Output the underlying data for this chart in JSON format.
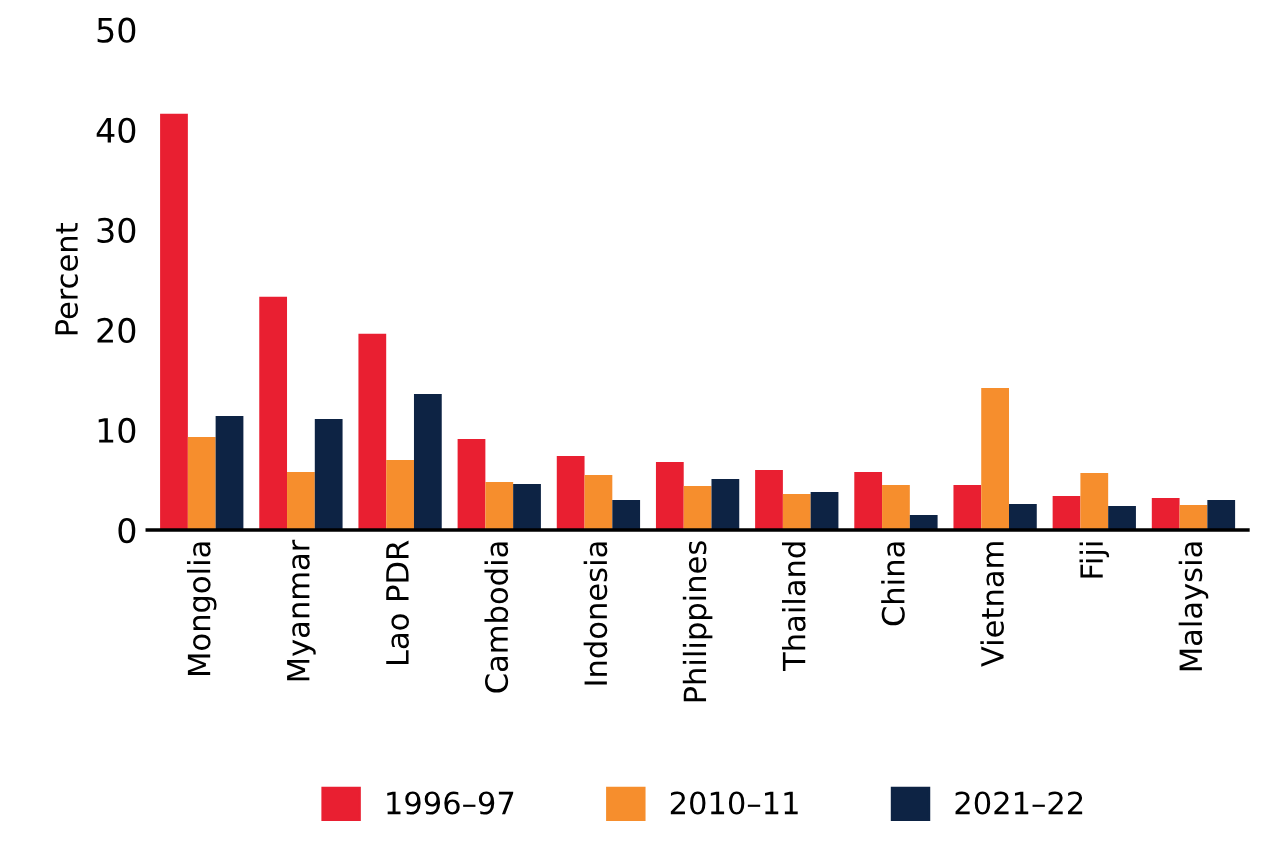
{
  "chart_data": {
    "type": "bar",
    "ylabel": "Percent",
    "categories": [
      "Mongolia",
      "Myanmar",
      "Lao PDR",
      "Cambodia",
      "Indonesia",
      "Philippines",
      "Thailand",
      "China",
      "Vietnam",
      "Fiji",
      "Malaysia"
    ],
    "series": [
      {
        "name": "1996–97",
        "color": "#e91f31",
        "values": [
          41.6,
          23.3,
          19.6,
          9.1,
          7.4,
          6.8,
          6.0,
          5.8,
          4.5,
          3.4,
          3.2
        ]
      },
      {
        "name": "2010–11",
        "color": "#f68e2d",
        "values": [
          9.3,
          5.8,
          7.0,
          4.8,
          5.5,
          4.4,
          3.6,
          4.5,
          14.2,
          5.7,
          2.5
        ]
      },
      {
        "name": "2021–22",
        "color": "#0d2344",
        "values": [
          11.4,
          11.1,
          13.6,
          4.6,
          3.0,
          5.1,
          3.8,
          1.5,
          2.6,
          2.4,
          3.0
        ]
      }
    ],
    "ylim": [
      0,
      50
    ],
    "yticks": [
      0,
      10,
      20,
      30,
      40,
      50
    ],
    "grid": false,
    "legend": "bottom"
  }
}
